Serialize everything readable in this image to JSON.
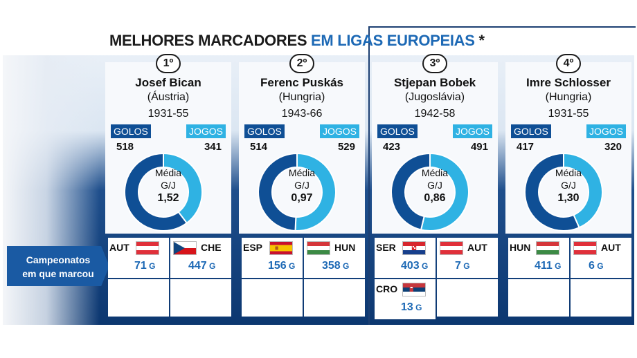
{
  "header": {
    "title_main": "MELHORES MARCADORES",
    "title_accent": "EM LIGAS EUROPEIAS",
    "title_star": "*"
  },
  "labels": {
    "golos": "GOLOS",
    "jogos": "JOGOS",
    "media_1": "Média",
    "media_2": "G/J",
    "goal_unit": "G",
    "campeonatos_1": "Campeonatos",
    "campeonatos_2": "em que marcou"
  },
  "colors": {
    "golos": "#0f4f95",
    "jogos": "#2fb2e3",
    "accent": "#1d69b5"
  },
  "chart_data": {
    "type": "pie",
    "variant": "donut",
    "title": "MELHORES MARCADORES EM LIGAS EUROPEIAS *",
    "series_names": [
      "GOLOS",
      "JOGOS"
    ],
    "players": [
      {
        "rank": "1º",
        "name": "Josef Bican",
        "country": "(Áustria)",
        "years": "1931-55",
        "golos": 518,
        "jogos": 341,
        "media": "1,52",
        "leagues": [
          {
            "code": "AUT",
            "goals": 71,
            "flag": "austria"
          },
          {
            "code": "CHE",
            "goals": 447,
            "flag": "czech"
          }
        ]
      },
      {
        "rank": "2º",
        "name": "Ferenc Puskás",
        "country": "(Hungria)",
        "years": "1943-66",
        "golos": 514,
        "jogos": 529,
        "media": "0,97",
        "leagues": [
          {
            "code": "ESP",
            "goals": 156,
            "flag": "spain"
          },
          {
            "code": "HUN",
            "goals": 358,
            "flag": "hungary"
          }
        ]
      },
      {
        "rank": "3º",
        "name": "Stjepan Bobek",
        "country": "(Jugoslávia)",
        "years": "1942-58",
        "golos": 423,
        "jogos": 491,
        "media": "0,86",
        "leagues": [
          {
            "code": "SER",
            "goals": 403,
            "flag": "croatia"
          },
          {
            "code": "AUT",
            "goals": 7,
            "flag": "austria"
          },
          {
            "code": "CRO",
            "goals": 13,
            "flag": "serbia"
          }
        ]
      },
      {
        "rank": "4º",
        "name": "Imre Schlosser",
        "country": "(Hungria)",
        "years": "1931-55",
        "golos": 417,
        "jogos": 320,
        "media": "1,30",
        "leagues": [
          {
            "code": "HUN",
            "goals": 411,
            "flag": "hungary"
          },
          {
            "code": "AUT",
            "goals": 6,
            "flag": "austria"
          }
        ]
      }
    ]
  }
}
